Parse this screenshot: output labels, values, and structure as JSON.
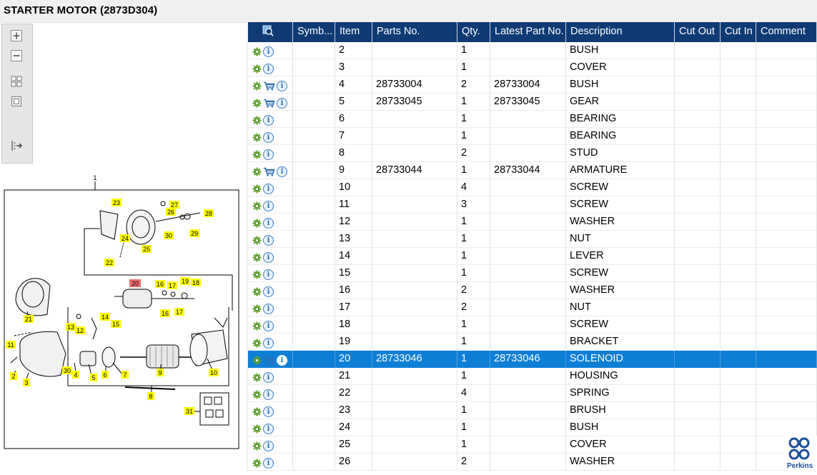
{
  "header": {
    "title": "STARTER MOTOR (2873D304)"
  },
  "table": {
    "columns": [
      "",
      "Symb...",
      "Item",
      "Parts No.",
      "Qty.",
      "Latest Part No.",
      "Description",
      "Cut Out",
      "Cut In",
      "Comment"
    ],
    "selected_index": 18,
    "rows": [
      {
        "cart": false,
        "item": "2",
        "parts_no": "",
        "qty": "1",
        "latest": "",
        "desc": "BUSH"
      },
      {
        "cart": false,
        "item": "3",
        "parts_no": "",
        "qty": "1",
        "latest": "",
        "desc": "COVER"
      },
      {
        "cart": true,
        "item": "4",
        "parts_no": "28733004",
        "qty": "2",
        "latest": "28733004",
        "desc": "BUSH"
      },
      {
        "cart": true,
        "item": "5",
        "parts_no": "28733045",
        "qty": "1",
        "latest": "28733045",
        "desc": "GEAR"
      },
      {
        "cart": false,
        "item": "6",
        "parts_no": "",
        "qty": "1",
        "latest": "",
        "desc": "BEARING"
      },
      {
        "cart": false,
        "item": "7",
        "parts_no": "",
        "qty": "1",
        "latest": "",
        "desc": "BEARING"
      },
      {
        "cart": false,
        "item": "8",
        "parts_no": "",
        "qty": "2",
        "latest": "",
        "desc": "STUD"
      },
      {
        "cart": true,
        "item": "9",
        "parts_no": "28733044",
        "qty": "1",
        "latest": "28733044",
        "desc": "ARMATURE"
      },
      {
        "cart": false,
        "item": "10",
        "parts_no": "",
        "qty": "4",
        "latest": "",
        "desc": "SCREW"
      },
      {
        "cart": false,
        "item": "11",
        "parts_no": "",
        "qty": "3",
        "latest": "",
        "desc": "SCREW"
      },
      {
        "cart": false,
        "item": "12",
        "parts_no": "",
        "qty": "1",
        "latest": "",
        "desc": "WASHER"
      },
      {
        "cart": false,
        "item": "13",
        "parts_no": "",
        "qty": "1",
        "latest": "",
        "desc": "NUT"
      },
      {
        "cart": false,
        "item": "14",
        "parts_no": "",
        "qty": "1",
        "latest": "",
        "desc": "LEVER"
      },
      {
        "cart": false,
        "item": "15",
        "parts_no": "",
        "qty": "1",
        "latest": "",
        "desc": "SCREW"
      },
      {
        "cart": false,
        "item": "16",
        "parts_no": "",
        "qty": "2",
        "latest": "",
        "desc": "WASHER"
      },
      {
        "cart": false,
        "item": "17",
        "parts_no": "",
        "qty": "2",
        "latest": "",
        "desc": "NUT"
      },
      {
        "cart": false,
        "item": "18",
        "parts_no": "",
        "qty": "1",
        "latest": "",
        "desc": "SCREW"
      },
      {
        "cart": false,
        "item": "19",
        "parts_no": "",
        "qty": "1",
        "latest": "",
        "desc": "BRACKET"
      },
      {
        "cart": true,
        "item": "20",
        "parts_no": "28733046",
        "qty": "1",
        "latest": "28733046",
        "desc": "SOLENOID"
      },
      {
        "cart": false,
        "item": "21",
        "parts_no": "",
        "qty": "1",
        "latest": "",
        "desc": "HOUSING"
      },
      {
        "cart": false,
        "item": "22",
        "parts_no": "",
        "qty": "4",
        "latest": "",
        "desc": "SPRING"
      },
      {
        "cart": false,
        "item": "23",
        "parts_no": "",
        "qty": "1",
        "latest": "",
        "desc": "BRUSH"
      },
      {
        "cart": false,
        "item": "24",
        "parts_no": "",
        "qty": "1",
        "latest": "",
        "desc": "BUSH"
      },
      {
        "cart": false,
        "item": "25",
        "parts_no": "",
        "qty": "1",
        "latest": "",
        "desc": "COVER"
      },
      {
        "cart": false,
        "item": "26",
        "parts_no": "",
        "qty": "2",
        "latest": "",
        "desc": "WASHER"
      }
    ]
  },
  "diagram": {
    "callouts": [
      "1",
      "2",
      "3",
      "4",
      "5",
      "6",
      "7",
      "8",
      "9",
      "10",
      "11",
      "12",
      "13",
      "14",
      "15",
      "16",
      "16",
      "17",
      "17",
      "18",
      "19",
      "20",
      "21",
      "22",
      "23",
      "24",
      "25",
      "26",
      "27",
      "28",
      "29",
      "30",
      "30",
      "31"
    ],
    "highlighted_callout": "20"
  },
  "toolbar": {
    "icons": [
      "zoom-in-icon",
      "zoom-out-icon",
      "fit-page-icon",
      "actual-size-icon",
      "export-icon"
    ]
  },
  "brand": {
    "name": "Perkins",
    "color": "#1a4f9c"
  },
  "colors": {
    "header_bg": "#103a74",
    "selected_row": "#0f7fd6",
    "callout": "#ffff00",
    "callout_selected": "#f26b6b"
  }
}
